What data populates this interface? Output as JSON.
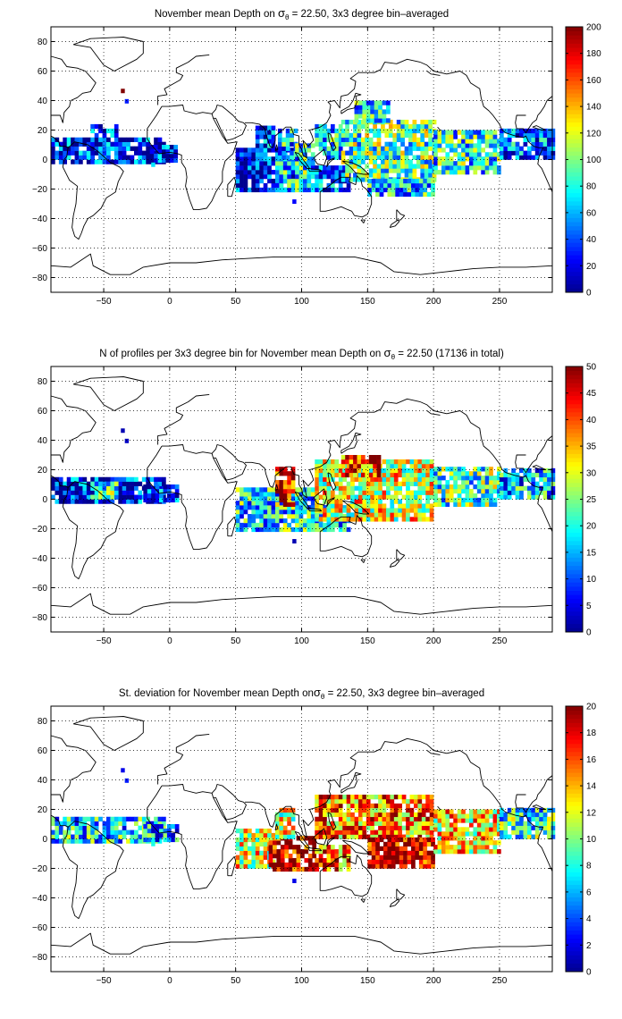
{
  "colormap": {
    "name": "jet",
    "stops": [
      "#00008f",
      "#0000ff",
      "#0080ff",
      "#00ffff",
      "#80ff80",
      "#ffff00",
      "#ff8000",
      "#ff0000",
      "#800000"
    ]
  },
  "panels": [
    {
      "key": "depth",
      "title_parts": [
        "November mean Depth on ",
        "σ",
        "θ",
        " = 22.50, 3x3 degree bin–averaged"
      ]
    },
    {
      "key": "nprof",
      "title_parts": [
        "N of profiles per 3x3 degree bin for November mean Depth on ",
        "σ",
        "θ",
        " = 22.50 (17136 in total)"
      ]
    },
    {
      "key": "std",
      "title_parts": [
        "St. deviation for November mean Depth on",
        "σ",
        "θ",
        " = 22.50, 3x3 degree bin–averaged"
      ]
    }
  ],
  "chart_data": [
    {
      "type": "heatmap",
      "title": "November mean Depth on σθ = 22.50, 3x3 degree bin–averaged",
      "xlim": [
        -90,
        290
      ],
      "ylim": [
        -90,
        90
      ],
      "xticks": [
        -50,
        0,
        50,
        100,
        150,
        200,
        250
      ],
      "yticks": [
        -80,
        -60,
        -40,
        -20,
        0,
        20,
        40,
        60,
        80
      ],
      "grid": true,
      "colorbar": {
        "min": 0,
        "max": 200,
        "ticks": [
          0,
          20,
          40,
          60,
          80,
          100,
          120,
          140,
          160,
          180,
          200
        ]
      },
      "regions": [
        {
          "lon": [
            -90,
            -5
          ],
          "lat": [
            -3,
            15
          ],
          "value": 25
        },
        {
          "lon": [
            -60,
            -40
          ],
          "lat": [
            15,
            22
          ],
          "value": 30
        },
        {
          "lon": [
            -15,
            5
          ],
          "lat": [
            -2,
            8
          ],
          "value": 25
        },
        {
          "lon": [
            50,
            95
          ],
          "lat": [
            -22,
            8
          ],
          "value": 20
        },
        {
          "lon": [
            65,
            80
          ],
          "lat": [
            5,
            23
          ],
          "value": 30
        },
        {
          "lon": [
            80,
            110
          ],
          "lat": [
            -22,
            0
          ],
          "value": 70
        },
        {
          "lon": [
            82,
            95
          ],
          "lat": [
            0,
            20
          ],
          "value": 65
        },
        {
          "lon": [
            95,
            110
          ],
          "lat": [
            -10,
            10
          ],
          "value": 75
        },
        {
          "lon": [
            110,
            135
          ],
          "lat": [
            -22,
            -5
          ],
          "value": 40
        },
        {
          "lon": [
            110,
            130
          ],
          "lat": [
            0,
            22
          ],
          "value": 70
        },
        {
          "lon": [
            130,
            200
          ],
          "lat": [
            -15,
            25
          ],
          "value": 90
        },
        {
          "lon": [
            140,
            165
          ],
          "lat": [
            25,
            40
          ],
          "value": 75
        },
        {
          "lon": [
            150,
            200
          ],
          "lat": [
            -25,
            -15
          ],
          "value": 70
        },
        {
          "lon": [
            200,
            250
          ],
          "lat": [
            -10,
            20
          ],
          "value": 80
        },
        {
          "lon": [
            250,
            290
          ],
          "lat": [
            0,
            20
          ],
          "value": 45
        }
      ],
      "isolated": [
        {
          "lon": -37,
          "lat": 45,
          "value": 200
        },
        {
          "lon": -34,
          "lat": 38,
          "value": 30
        },
        {
          "lon": -14,
          "lat": -5,
          "value": 70
        },
        {
          "lon": 93,
          "lat": -30,
          "value": 25
        }
      ]
    },
    {
      "type": "heatmap",
      "title": "N of profiles per 3x3 degree bin for November mean Depth on σθ = 22.50 (17136 in total)",
      "xlim": [
        -90,
        290
      ],
      "ylim": [
        -90,
        90
      ],
      "xticks": [
        -50,
        0,
        50,
        100,
        150,
        200,
        250
      ],
      "yticks": [
        -80,
        -60,
        -40,
        -20,
        0,
        20,
        40,
        60,
        80
      ],
      "grid": true,
      "colorbar": {
        "min": 0,
        "max": 50,
        "ticks": [
          0,
          5,
          10,
          15,
          20,
          25,
          30,
          35,
          40,
          45,
          50
        ]
      },
      "regions": [
        {
          "lon": [
            -90,
            -5
          ],
          "lat": [
            -3,
            15
          ],
          "value": 6
        },
        {
          "lon": [
            -60,
            -40
          ],
          "lat": [
            0,
            10
          ],
          "value": 22
        },
        {
          "lon": [
            -20,
            5
          ],
          "lat": [
            -2,
            8
          ],
          "value": 8
        },
        {
          "lon": [
            50,
            110
          ],
          "lat": [
            -22,
            8
          ],
          "value": 18
        },
        {
          "lon": [
            80,
            95
          ],
          "lat": [
            -5,
            22
          ],
          "value": 45
        },
        {
          "lon": [
            110,
            135
          ],
          "lat": [
            -22,
            -5
          ],
          "value": 15
        },
        {
          "lon": [
            110,
            200
          ],
          "lat": [
            -15,
            25
          ],
          "value": 30
        },
        {
          "lon": [
            130,
            160
          ],
          "lat": [
            15,
            30
          ],
          "value": 42
        },
        {
          "lon": [
            200,
            250
          ],
          "lat": [
            -5,
            20
          ],
          "value": 22
        },
        {
          "lon": [
            250,
            290
          ],
          "lat": [
            0,
            20
          ],
          "value": 15
        }
      ],
      "isolated": [
        {
          "lon": -37,
          "lat": 45,
          "value": 2
        },
        {
          "lon": -34,
          "lat": 38,
          "value": 3
        },
        {
          "lon": 93,
          "lat": -30,
          "value": 2
        }
      ]
    },
    {
      "type": "heatmap",
      "title": "St. deviation for November mean Depth onσθ = 22.50, 3x3 degree bin–averaged",
      "xlim": [
        -90,
        290
      ],
      "ylim": [
        -90,
        90
      ],
      "xticks": [
        -50,
        0,
        50,
        100,
        150,
        200,
        250
      ],
      "yticks": [
        -80,
        -60,
        -40,
        -20,
        0,
        20,
        40,
        60,
        80
      ],
      "grid": true,
      "colorbar": {
        "min": 0,
        "max": 20,
        "ticks": [
          0,
          2,
          4,
          6,
          8,
          10,
          12,
          14,
          16,
          18,
          20
        ]
      },
      "regions": [
        {
          "lon": [
            -90,
            -5
          ],
          "lat": [
            -3,
            15
          ],
          "value": 7
        },
        {
          "lon": [
            -20,
            5
          ],
          "lat": [
            -2,
            8
          ],
          "value": 6
        },
        {
          "lon": [
            50,
            80
          ],
          "lat": [
            -20,
            5
          ],
          "value": 12
        },
        {
          "lon": [
            75,
            110
          ],
          "lat": [
            -22,
            0
          ],
          "value": 19
        },
        {
          "lon": [
            80,
            95
          ],
          "lat": [
            0,
            20
          ],
          "value": 12
        },
        {
          "lon": [
            110,
            135
          ],
          "lat": [
            -22,
            -5
          ],
          "value": 15
        },
        {
          "lon": [
            110,
            200
          ],
          "lat": [
            0,
            28
          ],
          "value": 15
        },
        {
          "lon": [
            150,
            200
          ],
          "lat": [
            -20,
            0
          ],
          "value": 19
        },
        {
          "lon": [
            200,
            250
          ],
          "lat": [
            -10,
            20
          ],
          "value": 13
        },
        {
          "lon": [
            250,
            290
          ],
          "lat": [
            0,
            20
          ],
          "value": 8
        }
      ],
      "isolated": [
        {
          "lon": -37,
          "lat": 45,
          "value": 2
        },
        {
          "lon": -34,
          "lat": 38,
          "value": 3
        },
        {
          "lon": -14,
          "lat": -5,
          "value": 8
        },
        {
          "lon": 93,
          "lat": -30,
          "value": 2
        }
      ]
    }
  ]
}
